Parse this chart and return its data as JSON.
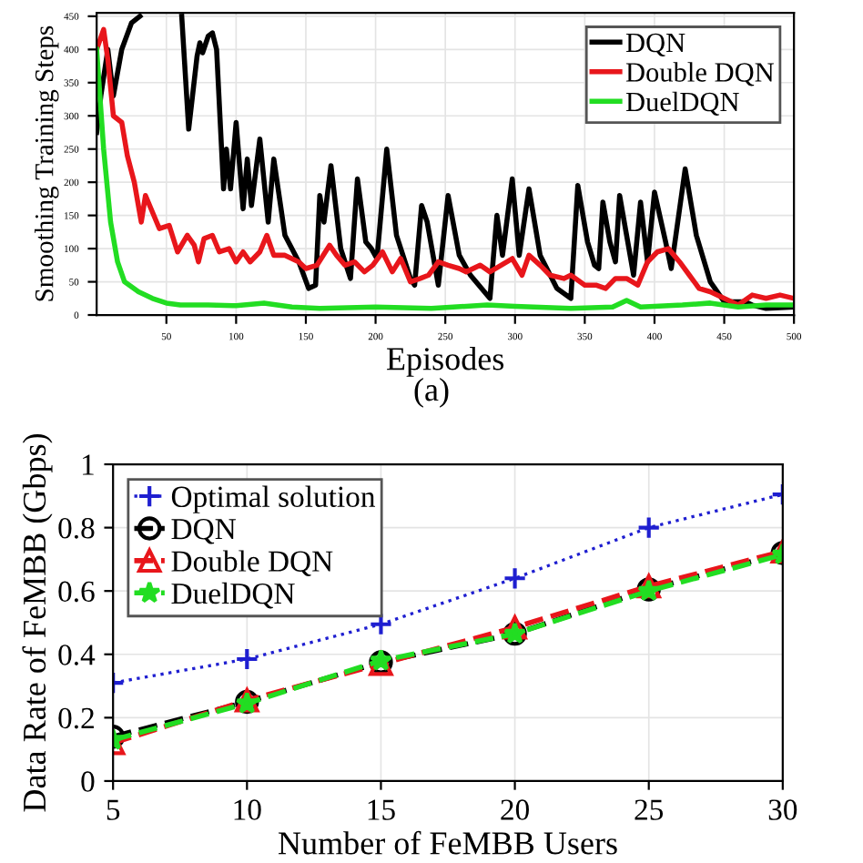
{
  "chart_data": [
    {
      "type": "line",
      "xlabel": "Episodes",
      "ylabel": "Smoothing Training Steps",
      "annotations": [
        "(a)"
      ],
      "xlim": [
        0,
        500
      ],
      "ylim": [
        0,
        455
      ],
      "xticks": [
        50,
        100,
        150,
        200,
        250,
        300,
        350,
        400,
        450,
        500
      ],
      "yticks": [
        0,
        50,
        100,
        150,
        200,
        250,
        300,
        350,
        400,
        450
      ],
      "grid": true,
      "legend": "top right",
      "marker": "none",
      "line_style": "solid",
      "series": [
        {
          "name": "DQN",
          "color": "#000000",
          "x": [
            0,
            3,
            8,
            12,
            18,
            25,
            31,
            45,
            61,
            66,
            72,
            74,
            76,
            80,
            83,
            86,
            91,
            93,
            96,
            100,
            105,
            108,
            111,
            117,
            123,
            127,
            135,
            145,
            152,
            157,
            160,
            163,
            168,
            175,
            182,
            187,
            193,
            197,
            201,
            208,
            215,
            225,
            228,
            233,
            237,
            245,
            252,
            260,
            268,
            282,
            287,
            291,
            298,
            303,
            310,
            318,
            330,
            340,
            345,
            352,
            357,
            360,
            363,
            368,
            372,
            375,
            380,
            385,
            390,
            395,
            400,
            408,
            412,
            422,
            430,
            440,
            450,
            465,
            470,
            480,
            500
          ],
          "values": [
            275,
            330,
            400,
            330,
            400,
            440,
            450,
            null,
            450,
            280,
            390,
            410,
            395,
            420,
            425,
            400,
            190,
            250,
            190,
            290,
            160,
            235,
            165,
            265,
            140,
            235,
            120,
            80,
            40,
            45,
            180,
            140,
            225,
            100,
            55,
            205,
            110,
            100,
            85,
            250,
            120,
            55,
            45,
            165,
            140,
            45,
            180,
            90,
            60,
            25,
            150,
            90,
            205,
            90,
            190,
            90,
            40,
            25,
            195,
            110,
            75,
            70,
            170,
            110,
            80,
            180,
            120,
            60,
            170,
            80,
            185,
            110,
            70,
            220,
            120,
            50,
            20,
            20,
            15,
            10,
            12
          ]
        },
        {
          "name": "Double DQN",
          "color": "#e8161b",
          "x": [
            0,
            5,
            8,
            12,
            18,
            22,
            27,
            32,
            35,
            40,
            45,
            52,
            58,
            65,
            70,
            73,
            77,
            83,
            88,
            95,
            100,
            105,
            110,
            117,
            122,
            127,
            135,
            145,
            150,
            158,
            167,
            172,
            178,
            185,
            192,
            198,
            205,
            212,
            218,
            225,
            232,
            238,
            245,
            252,
            260,
            265,
            275,
            282,
            290,
            298,
            305,
            310,
            318,
            325,
            335,
            340,
            350,
            358,
            365,
            372,
            380,
            388,
            395,
            402,
            410,
            418,
            425,
            432,
            440,
            450,
            460,
            470,
            480,
            490,
            500
          ],
          "values": [
            400,
            430,
            385,
            300,
            290,
            240,
            200,
            140,
            180,
            155,
            130,
            135,
            95,
            120,
            105,
            80,
            115,
            120,
            95,
            100,
            80,
            95,
            80,
            95,
            120,
            90,
            90,
            80,
            70,
            75,
            105,
            90,
            75,
            80,
            65,
            75,
            95,
            65,
            85,
            50,
            55,
            60,
            80,
            75,
            70,
            65,
            75,
            65,
            75,
            85,
            60,
            90,
            75,
            60,
            55,
            60,
            45,
            45,
            40,
            55,
            55,
            45,
            80,
            95,
            100,
            80,
            60,
            40,
            35,
            25,
            15,
            30,
            25,
            30,
            25
          ]
        },
        {
          "name": "DuelDQN",
          "color": "#22dd22",
          "x": [
            0,
            5,
            10,
            15,
            20,
            30,
            40,
            50,
            60,
            80,
            100,
            120,
            140,
            160,
            180,
            200,
            240,
            280,
            300,
            340,
            370,
            380,
            390,
            420,
            440,
            460,
            480,
            500
          ],
          "values": [
            400,
            250,
            140,
            80,
            50,
            35,
            25,
            18,
            15,
            15,
            14,
            18,
            12,
            10,
            11,
            12,
            10,
            15,
            13,
            10,
            12,
            22,
            12,
            15,
            18,
            12,
            15,
            15
          ]
        }
      ]
    },
    {
      "type": "line",
      "xlabel": "Number of FeMBB Users",
      "ylabel": "Data Rate of FeMBB (Gbps)",
      "xlim": [
        5,
        30
      ],
      "ylim": [
        0,
        1
      ],
      "xticks": [
        5,
        10,
        15,
        20,
        25,
        30
      ],
      "yticks": [
        0,
        0.2,
        0.4,
        0.6,
        0.8,
        1
      ],
      "grid": true,
      "legend": "top left",
      "x": [
        5,
        10,
        15,
        20,
        25,
        30
      ],
      "series": [
        {
          "name": "Optimal solution",
          "color": "#1f1fd0",
          "marker": "cross",
          "line_style": "dotted",
          "values": [
            0.31,
            0.385,
            0.495,
            0.64,
            0.8,
            0.905
          ]
        },
        {
          "name": "DQN",
          "color": "#000000",
          "marker": "circle",
          "line_style": "dashed",
          "values": [
            0.14,
            0.25,
            0.375,
            0.465,
            0.605,
            0.72
          ]
        },
        {
          "name": "Double DQN",
          "color": "#e8161b",
          "marker": "triangle",
          "line_style": "dashed",
          "values": [
            0.12,
            0.255,
            0.37,
            0.485,
            0.615,
            0.725
          ]
        },
        {
          "name": "DuelDQN",
          "color": "#22dd22",
          "marker": "star",
          "line_style": "dashed",
          "values": [
            0.13,
            0.245,
            0.38,
            0.465,
            0.6,
            0.715
          ]
        }
      ]
    }
  ]
}
